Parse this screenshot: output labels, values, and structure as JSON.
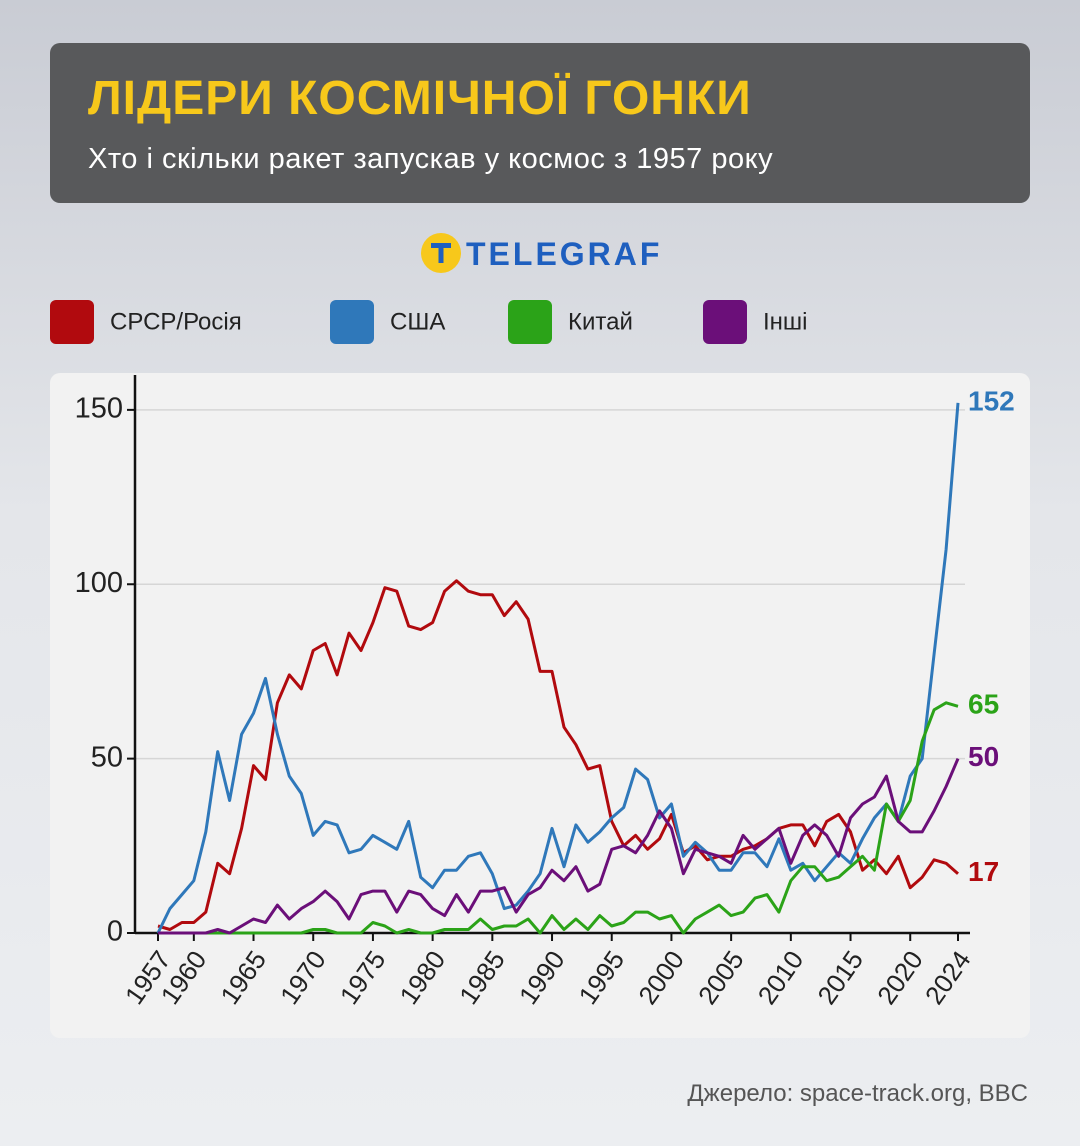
{
  "header": {
    "title": "ЛІДЕРИ КОСМІЧНОЇ ГОНКИ",
    "subtitle": "Хто і скільки ракет запускав у космос з 1957 року",
    "brand": "TELEGRAF"
  },
  "source": "Джерело: space-track.org, BBC",
  "chart_data": {
    "type": "line",
    "x": [
      1957,
      1958,
      1959,
      1960,
      1961,
      1962,
      1963,
      1964,
      1965,
      1966,
      1967,
      1968,
      1969,
      1970,
      1971,
      1972,
      1973,
      1974,
      1975,
      1976,
      1977,
      1978,
      1979,
      1980,
      1981,
      1982,
      1983,
      1984,
      1985,
      1986,
      1987,
      1988,
      1989,
      1990,
      1991,
      1992,
      1993,
      1994,
      1995,
      1996,
      1997,
      1998,
      1999,
      2000,
      2001,
      2002,
      2003,
      2004,
      2005,
      2006,
      2007,
      2008,
      2009,
      2010,
      2011,
      2012,
      2013,
      2014,
      2015,
      2016,
      2017,
      2018,
      2019,
      2020,
      2021,
      2022,
      2023,
      2024
    ],
    "xlim": [
      1957,
      2024
    ],
    "xticks": [
      1957,
      1960,
      1965,
      1970,
      1975,
      1980,
      1985,
      1990,
      1995,
      2000,
      2005,
      2010,
      2015,
      2020,
      2024
    ],
    "ylim": [
      0,
      160
    ],
    "yticks": [
      0,
      50,
      100,
      150
    ],
    "grid": true,
    "series": [
      {
        "name": "СРСР/Росія",
        "color": "#b10a0e",
        "values": [
          2,
          1,
          3,
          3,
          6,
          20,
          17,
          30,
          48,
          44,
          66,
          74,
          70,
          81,
          83,
          74,
          86,
          81,
          89,
          99,
          98,
          88,
          87,
          89,
          98,
          101,
          98,
          97,
          97,
          91,
          95,
          90,
          75,
          75,
          59,
          54,
          47,
          48,
          32,
          25,
          28,
          24,
          27,
          34,
          23,
          25,
          21,
          22,
          22,
          24,
          25,
          27,
          30,
          31,
          31,
          25,
          32,
          34,
          29,
          18,
          21,
          17,
          22,
          13,
          16,
          21,
          20,
          17
        ]
      },
      {
        "name": "США",
        "color": "#2f78ba",
        "values": [
          0,
          7,
          11,
          15,
          29,
          52,
          38,
          57,
          63,
          73,
          57,
          45,
          40,
          28,
          32,
          31,
          23,
          24,
          28,
          26,
          24,
          32,
          16,
          13,
          18,
          18,
          22,
          23,
          17,
          7,
          8,
          12,
          17,
          30,
          19,
          31,
          26,
          29,
          33,
          36,
          47,
          44,
          33,
          37,
          22,
          26,
          23,
          18,
          18,
          23,
          23,
          19,
          27,
          18,
          20,
          15,
          19,
          23,
          20,
          27,
          33,
          37,
          32,
          45,
          50,
          80,
          110,
          152
        ]
      },
      {
        "name": "Китай",
        "color": "#2ba318",
        "values": [
          0,
          0,
          0,
          0,
          0,
          0,
          0,
          0,
          0,
          0,
          0,
          0,
          0,
          1,
          1,
          0,
          0,
          0,
          3,
          2,
          0,
          1,
          0,
          0,
          1,
          1,
          1,
          4,
          1,
          2,
          2,
          4,
          0,
          5,
          1,
          4,
          1,
          5,
          2,
          3,
          6,
          6,
          4,
          5,
          0,
          4,
          6,
          8,
          5,
          6,
          10,
          11,
          6,
          15,
          19,
          19,
          15,
          16,
          19,
          22,
          18,
          37,
          32,
          38,
          55,
          64,
          66,
          65
        ]
      },
      {
        "name": "Інші",
        "color": "#6b0f79",
        "values": [
          0,
          0,
          0,
          0,
          0,
          1,
          0,
          2,
          4,
          3,
          8,
          4,
          7,
          9,
          12,
          9,
          4,
          11,
          12,
          12,
          6,
          12,
          11,
          7,
          5,
          11,
          6,
          12,
          12,
          13,
          6,
          11,
          13,
          18,
          15,
          19,
          12,
          14,
          24,
          25,
          23,
          28,
          35,
          30,
          17,
          24,
          23,
          22,
          20,
          28,
          24,
          27,
          30,
          20,
          28,
          31,
          28,
          22,
          33,
          37,
          39,
          45,
          32,
          29,
          29,
          35,
          42,
          50
        ]
      }
    ]
  }
}
